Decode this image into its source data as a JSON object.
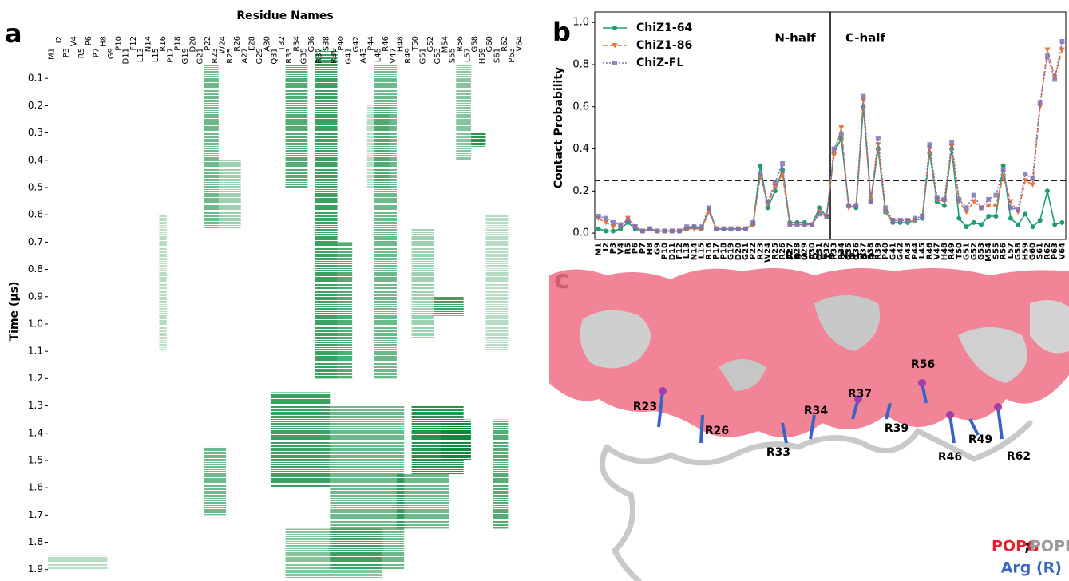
{
  "chart_data": [
    {
      "type": "heatmap",
      "panel": "a",
      "title": "Residue Names",
      "y_label": "Time  (µs)",
      "color": "#0a8a3a",
      "categories": [
        "M1",
        "I2",
        "P3",
        "V4",
        "R5",
        "P6",
        "P7",
        "H8",
        "G9",
        "P10",
        "D11",
        "F12",
        "L13",
        "N14",
        "L15",
        "R16",
        "P17",
        "P18",
        "G19",
        "D20",
        "G21",
        "P22",
        "R23",
        "W24",
        "R25",
        "R26",
        "A27",
        "E28",
        "G29",
        "A30",
        "Q31",
        "T32",
        "R33",
        "R34",
        "G35",
        "G36",
        "R37",
        "S38",
        "R39",
        "P40",
        "G41",
        "G42",
        "A43",
        "P44",
        "L45",
        "R46",
        "V47",
        "H48",
        "R49",
        "T50",
        "G51",
        "G52",
        "G53",
        "M54",
        "S55",
        "R56",
        "L57",
        "G58",
        "H59",
        "G60",
        "S61",
        "R62",
        "P63",
        "V64"
      ],
      "xlim": [
        0.5,
        64.5
      ],
      "ylim": [
        0,
        1.93
      ],
      "yticks": [
        0.1,
        0.2,
        0.3,
        0.4,
        0.5,
        0.6,
        0.7,
        0.8,
        0.9,
        {
          "value": 1.0,
          "label": "1.0"
        },
        1.1,
        1.2,
        1.3,
        1.4,
        1.5,
        1.6,
        1.7,
        1.8,
        1.9
      ],
      "blocks": [
        {
          "x": [
            22,
            23
          ],
          "y": [
            0.05,
            0.65
          ],
          "density": 0.6
        },
        {
          "x": [
            24,
            26
          ],
          "y": [
            0.4,
            0.65
          ],
          "density": 0.4
        },
        {
          "x": [
            33,
            35
          ],
          "y": [
            0.05,
            0.5
          ],
          "density": 0.7
        },
        {
          "x": [
            37,
            39
          ],
          "y": [
            0.0,
            1.2
          ],
          "density": 0.8
        },
        {
          "x": [
            40,
            41
          ],
          "y": [
            0.7,
            1.2
          ],
          "density": 0.7
        },
        {
          "x": [
            45,
            47
          ],
          "y": [
            0.05,
            1.2
          ],
          "density": 0.6
        },
        {
          "x": [
            56,
            57
          ],
          "y": [
            0.05,
            0.4
          ],
          "density": 0.5
        },
        {
          "x": [
            58,
            59
          ],
          "y": [
            0.3,
            0.35
          ],
          "density": 0.9
        },
        {
          "x": [
            53,
            56
          ],
          "y": [
            0.9,
            0.97
          ],
          "density": 0.8
        },
        {
          "x": [
            31,
            38
          ],
          "y": [
            1.25,
            1.6
          ],
          "density": 0.8
        },
        {
          "x": [
            39,
            48
          ],
          "y": [
            1.3,
            1.9
          ],
          "density": 0.6
        },
        {
          "x": [
            50,
            56
          ],
          "y": [
            1.3,
            1.55
          ],
          "density": 0.9
        },
        {
          "x": [
            54,
            57
          ],
          "y": [
            1.35,
            1.5
          ],
          "density": 1.0
        },
        {
          "x": [
            48,
            54
          ],
          "y": [
            1.55,
            1.75
          ],
          "density": 0.6
        },
        {
          "x": [
            22,
            24
          ],
          "y": [
            1.45,
            1.7
          ],
          "density": 0.6
        },
        {
          "x": [
            61,
            62
          ],
          "y": [
            1.35,
            1.75
          ],
          "density": 0.7
        },
        {
          "x": [
            33,
            45
          ],
          "y": [
            1.75,
            1.93
          ],
          "density": 0.5
        },
        {
          "x": [
            1,
            8
          ],
          "y": [
            1.85,
            1.9
          ],
          "density": 0.3
        },
        {
          "x": [
            16,
            16
          ],
          "y": [
            0.6,
            1.1
          ],
          "density": 0.3
        },
        {
          "x": [
            44,
            46
          ],
          "y": [
            0.2,
            0.5
          ],
          "density": 0.3
        },
        {
          "x": [
            50,
            52
          ],
          "y": [
            0.65,
            1.05
          ],
          "density": 0.4
        },
        {
          "x": [
            60,
            62
          ],
          "y": [
            0.6,
            1.1
          ],
          "density": 0.3
        }
      ]
    },
    {
      "type": "line",
      "panel": "b",
      "x_label": "Residue Name",
      "y_label": "Contact Probability",
      "annotations": [
        "N-half",
        "C-half"
      ],
      "hline": 0.25,
      "legend": "upper left",
      "ylim": [
        -0.03,
        1.05
      ],
      "yticks": [
        {
          "value": 0,
          "label": "0.0"
        },
        0.2,
        0.4,
        0.6,
        0.8,
        {
          "value": 1,
          "label": "1.0"
        }
      ],
      "series": [
        {
          "name": "ChiZ1-64",
          "color": "#1f9e74",
          "marker": "circle",
          "dash": "none",
          "values": [
            0.02,
            0.01,
            0.01,
            0.02,
            0.05,
            0.02,
            0.01,
            0.02,
            0.01,
            0.01,
            0.01,
            0.01,
            0.02,
            0.03,
            0.02,
            0.11,
            0.02,
            0.02,
            0.02,
            0.02,
            0.02,
            0.04,
            0.32,
            0.12,
            0.2,
            0.3,
            0.05,
            0.05,
            0.05,
            0.04,
            0.12,
            0.08,
            0.38,
            0.45,
            0.13,
            0.12,
            0.6,
            0.15,
            0.4,
            0.1,
            0.05,
            0.05,
            0.05,
            0.06,
            0.07,
            0.38,
            0.15,
            0.13,
            0.4,
            0.07,
            0.03,
            0.05,
            0.04,
            0.08,
            0.08,
            0.32,
            0.07,
            0.04,
            0.09,
            0.03,
            0.06,
            0.2,
            0.04,
            0.05
          ]
        },
        {
          "name": "ChiZ1-86",
          "color": "#e8743b",
          "marker": "triangle",
          "dash": "6 3",
          "values": [
            0.07,
            0.05,
            0.03,
            0.03,
            0.07,
            0.03,
            0.01,
            0.02,
            0.01,
            0.01,
            0.01,
            0.01,
            0.02,
            0.02,
            0.02,
            0.1,
            0.02,
            0.02,
            0.02,
            0.02,
            0.02,
            0.04,
            0.27,
            0.14,
            0.22,
            0.28,
            0.04,
            0.04,
            0.04,
            0.04,
            0.1,
            0.08,
            0.37,
            0.5,
            0.12,
            0.13,
            0.63,
            0.16,
            0.42,
            0.1,
            0.06,
            0.06,
            0.06,
            0.06,
            0.08,
            0.4,
            0.16,
            0.15,
            0.41,
            0.15,
            0.1,
            0.15,
            0.12,
            0.13,
            0.13,
            0.27,
            0.15,
            0.1,
            0.25,
            0.23,
            0.6,
            0.87,
            0.74,
            0.87
          ]
        },
        {
          "name": "ChiZ-FL",
          "color": "#7b6fb5",
          "marker": "square",
          "dash": "2 2",
          "values": [
            0.08,
            0.07,
            0.05,
            0.04,
            0.06,
            0.03,
            0.01,
            0.02,
            0.01,
            0.01,
            0.01,
            0.01,
            0.03,
            0.03,
            0.03,
            0.12,
            0.02,
            0.02,
            0.02,
            0.02,
            0.02,
            0.05,
            0.28,
            0.15,
            0.24,
            0.33,
            0.04,
            0.04,
            0.04,
            0.04,
            0.09,
            0.08,
            0.4,
            0.47,
            0.13,
            0.13,
            0.65,
            0.15,
            0.45,
            0.12,
            0.06,
            0.06,
            0.06,
            0.07,
            0.08,
            0.42,
            0.17,
            0.16,
            0.43,
            0.16,
            0.12,
            0.18,
            0.12,
            0.16,
            0.18,
            0.3,
            0.12,
            0.11,
            0.28,
            0.26,
            0.62,
            0.84,
            0.73,
            0.91
          ]
        }
      ]
    }
  ],
  "figure_c": {
    "panel": "c",
    "labels": [
      "R23",
      "R26",
      "R33",
      "R34",
      "R37",
      "R39",
      "R46",
      "R49",
      "R56",
      "R62"
    ],
    "legend": [
      "POPG",
      ";",
      "POPE"
    ],
    "legend_arg": "Arg (R)"
  }
}
